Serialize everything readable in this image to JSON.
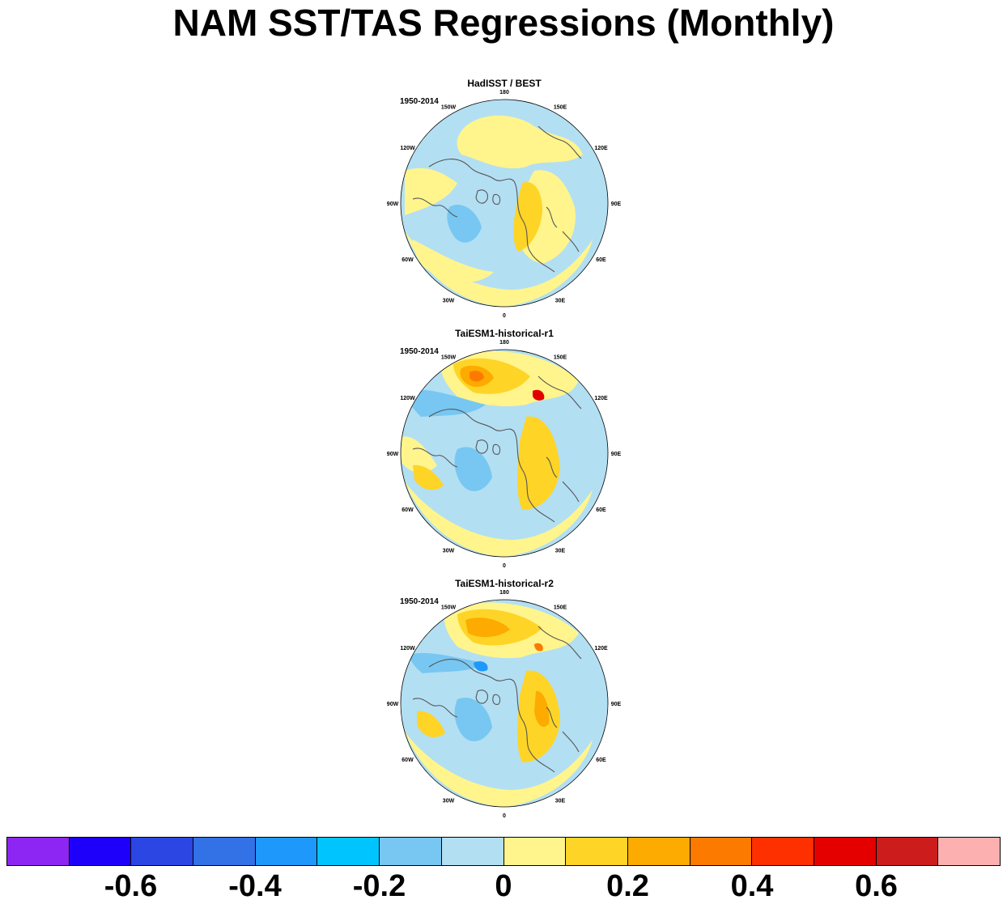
{
  "title": "NAM SST/TAS Regressions (Monthly)",
  "panels": [
    {
      "title": "HadISST / BEST",
      "period": "1950-2014"
    },
    {
      "title": "TaiESM1-historical-r1",
      "period": "1950-2014"
    },
    {
      "title": "TaiESM1-historical-r2",
      "period": "1950-2014"
    }
  ],
  "longitude_labels": [
    "180",
    "150E",
    "120E",
    "90E",
    "60E",
    "30E",
    "0",
    "30W",
    "60W",
    "90W",
    "120W",
    "150W"
  ],
  "colorbar": {
    "colors": [
      "#8e26f3",
      "#1e00fa",
      "#2b46e2",
      "#3271e6",
      "#1e98fb",
      "#00c4fe",
      "#77c7f2",
      "#b3dff3",
      "#fff58c",
      "#fed427",
      "#fdab00",
      "#fd7a00",
      "#fe3000",
      "#e50000",
      "#cc1c1c",
      "#fdb0b0"
    ],
    "labels": [
      "-0.6",
      "-0.4",
      "-0.2",
      "0",
      "0.2",
      "0.4",
      "0.6"
    ]
  }
}
